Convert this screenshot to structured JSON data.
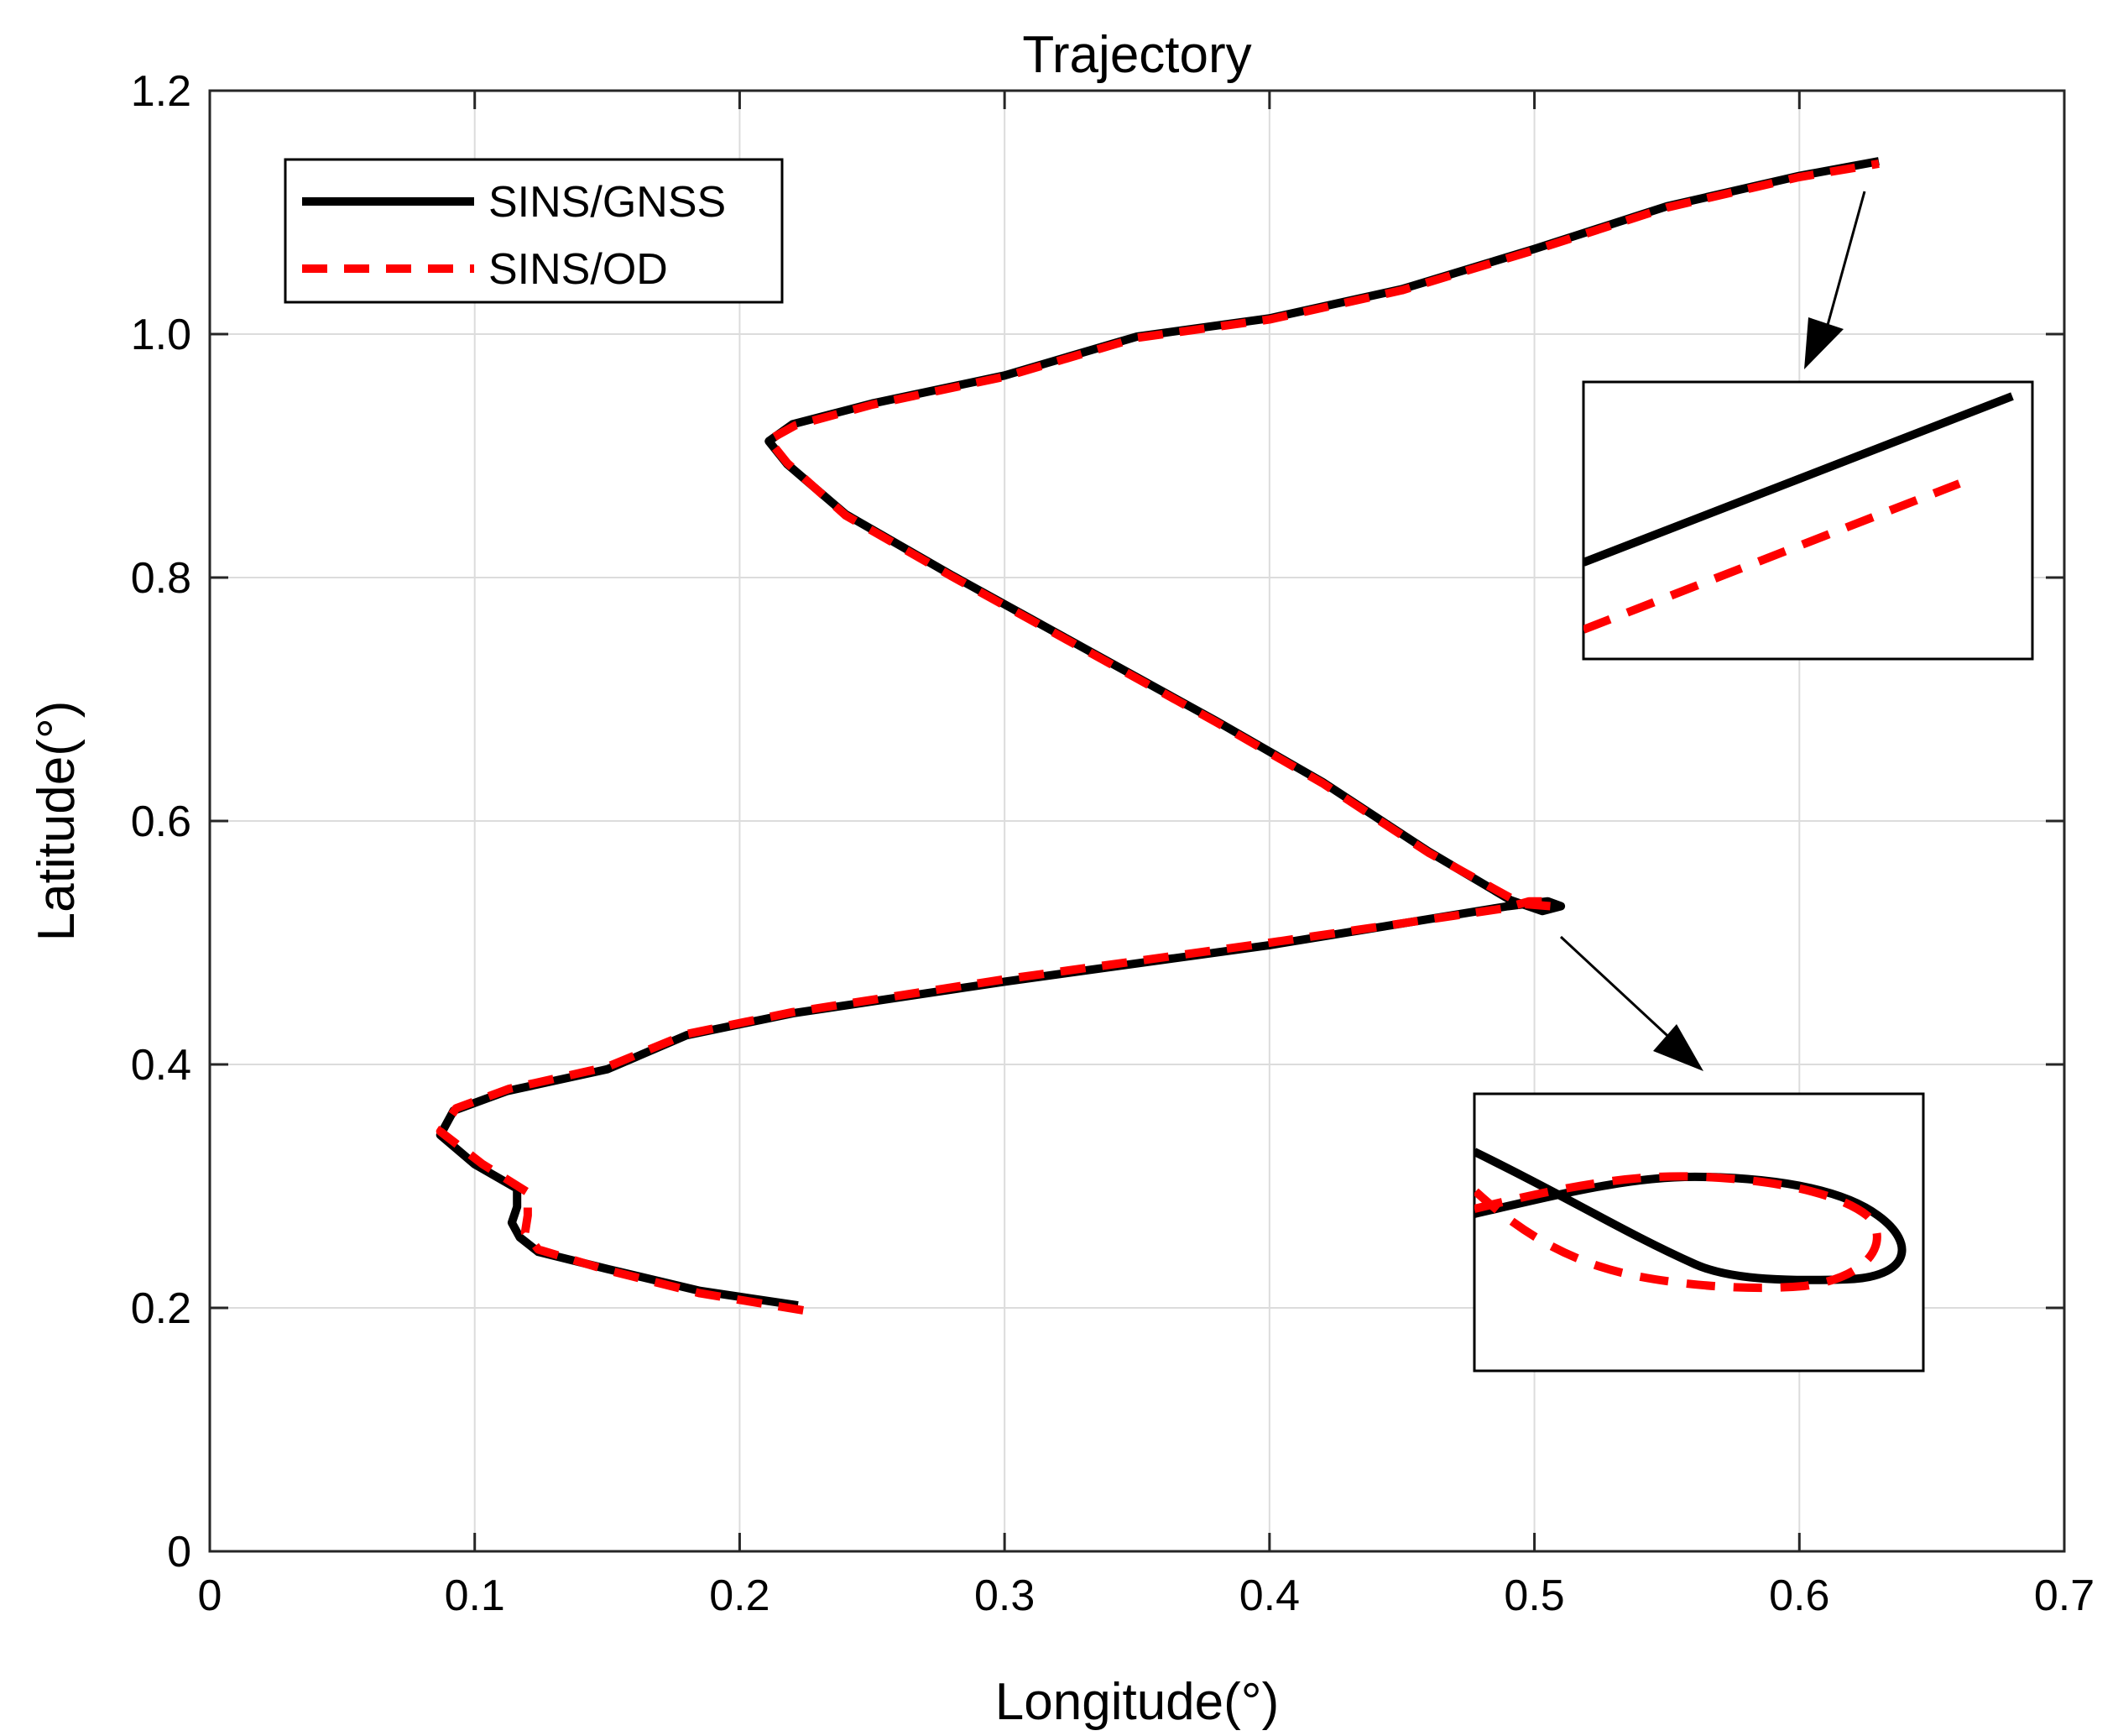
{
  "chart_data": {
    "type": "line",
    "title": "Trajectory",
    "xlabel": "Longitude(°)",
    "ylabel": "Latitude(°)",
    "xlim": [
      0,
      0.7
    ],
    "ylim": [
      0,
      1.2
    ],
    "xticks": [
      "0",
      "0.1",
      "0.2",
      "0.3",
      "0.4",
      "0.5",
      "0.6",
      "0.7"
    ],
    "yticks": [
      "0",
      "0.2",
      "0.4",
      "0.6",
      "0.8",
      "1.0",
      "1.2"
    ],
    "grid": true,
    "legend_position": "top-left",
    "series": [
      {
        "name": "SINS/GNSS",
        "color": "#000000",
        "style": "solid",
        "points": [
          [
            0.222,
            0.202
          ],
          [
            0.185,
            0.214
          ],
          [
            0.15,
            0.232
          ],
          [
            0.124,
            0.246
          ],
          [
            0.117,
            0.258
          ],
          [
            0.114,
            0.27
          ],
          [
            0.116,
            0.283
          ],
          [
            0.116,
            0.298
          ],
          [
            0.1,
            0.318
          ],
          [
            0.087,
            0.342
          ],
          [
            0.092,
            0.362
          ],
          [
            0.112,
            0.378
          ],
          [
            0.15,
            0.396
          ],
          [
            0.18,
            0.424
          ],
          [
            0.22,
            0.442
          ],
          [
            0.3,
            0.468
          ],
          [
            0.4,
            0.498
          ],
          [
            0.49,
            0.53
          ],
          [
            0.505,
            0.534
          ],
          [
            0.51,
            0.53
          ],
          [
            0.503,
            0.526
          ],
          [
            0.491,
            0.535
          ],
          [
            0.46,
            0.575
          ],
          [
            0.42,
            0.632
          ],
          [
            0.38,
            0.682
          ],
          [
            0.33,
            0.742
          ],
          [
            0.28,
            0.802
          ],
          [
            0.24,
            0.852
          ],
          [
            0.218,
            0.893
          ],
          [
            0.211,
            0.912
          ],
          [
            0.22,
            0.926
          ],
          [
            0.25,
            0.943
          ],
          [
            0.3,
            0.966
          ],
          [
            0.35,
            0.998
          ],
          [
            0.4,
            1.013
          ],
          [
            0.45,
            1.037
          ],
          [
            0.5,
            1.07
          ],
          [
            0.55,
            1.105
          ],
          [
            0.6,
            1.13
          ],
          [
            0.63,
            1.142
          ]
        ]
      },
      {
        "name": "SINS/OD",
        "color": "#ff0000",
        "style": "dashed",
        "points": [
          [
            0.224,
            0.198
          ],
          [
            0.185,
            0.212
          ],
          [
            0.15,
            0.231
          ],
          [
            0.124,
            0.248
          ],
          [
            0.119,
            0.262
          ],
          [
            0.12,
            0.276
          ],
          [
            0.12,
            0.295
          ],
          [
            0.103,
            0.318
          ],
          [
            0.087,
            0.345
          ],
          [
            0.093,
            0.364
          ],
          [
            0.113,
            0.38
          ],
          [
            0.15,
            0.398
          ],
          [
            0.18,
            0.425
          ],
          [
            0.22,
            0.443
          ],
          [
            0.3,
            0.47
          ],
          [
            0.4,
            0.5
          ],
          [
            0.488,
            0.528
          ],
          [
            0.498,
            0.534
          ],
          [
            0.507,
            0.534
          ],
          [
            0.506,
            0.53
          ],
          [
            0.495,
            0.532
          ],
          [
            0.46,
            0.574
          ],
          [
            0.42,
            0.631
          ],
          [
            0.38,
            0.681
          ],
          [
            0.33,
            0.741
          ],
          [
            0.28,
            0.801
          ],
          [
            0.24,
            0.851
          ],
          [
            0.218,
            0.894
          ],
          [
            0.211,
            0.913
          ],
          [
            0.221,
            0.925
          ],
          [
            0.25,
            0.942
          ],
          [
            0.3,
            0.965
          ],
          [
            0.35,
            0.997
          ],
          [
            0.4,
            1.012
          ],
          [
            0.45,
            1.036
          ],
          [
            0.5,
            1.069
          ],
          [
            0.55,
            1.104
          ],
          [
            0.6,
            1.129
          ],
          [
            0.63,
            1.14
          ]
        ]
      }
    ]
  }
}
